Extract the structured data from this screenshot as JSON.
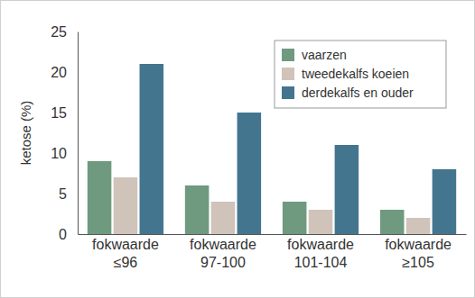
{
  "chart_data": {
    "type": "bar",
    "y_label": "ketose (%)",
    "categories": [
      "fokwaarde ≤96",
      "fokwaarde 97-100",
      "fokwaarde 101-104",
      "fokwaarde ≥105"
    ],
    "series": [
      {
        "name": "vaarzen",
        "color": "#6f9a80",
        "values": [
          9,
          6,
          4,
          3
        ]
      },
      {
        "name": "tweedekalfs koeien",
        "color": "#cfc3ba",
        "values": [
          7,
          4,
          3,
          2
        ]
      },
      {
        "name": "derdekalfs en ouder",
        "color": "#44758f",
        "values": [
          21,
          15,
          11,
          8
        ]
      }
    ],
    "ylim": [
      0,
      25
    ],
    "yticks": [
      0,
      5,
      10,
      15,
      20,
      25
    ],
    "grid": false,
    "legend": "top-right"
  }
}
